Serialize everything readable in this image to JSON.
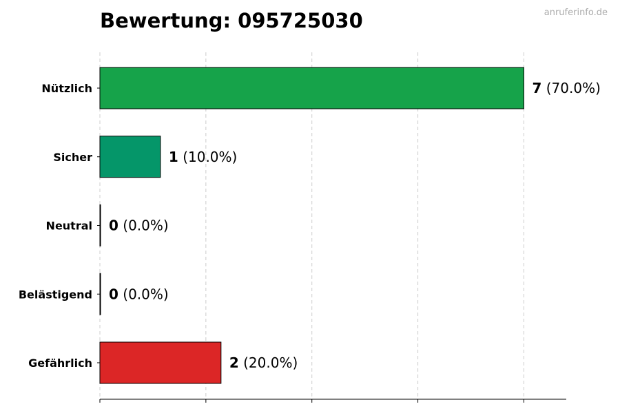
{
  "chart_data": {
    "type": "bar",
    "orientation": "horizontal",
    "title": "Bewertung: 095725030",
    "watermark": "anruferinfo.de",
    "categories": [
      "Nützlich",
      "Sicher",
      "Neutral",
      "Belästigend",
      "Gefährlich"
    ],
    "values": [
      7,
      1,
      0,
      0,
      2
    ],
    "percent_labels": [
      "(70.0%)",
      "(10.0%)",
      "(0.0%)",
      "(0.0%)",
      "(20.0%)"
    ],
    "colors": [
      "#16a34a",
      "#059669",
      "#6b7280",
      "#f97316",
      "#dc2626"
    ],
    "xlim": [
      0,
      7.7
    ],
    "xticks": [
      0,
      1.75,
      3.5,
      5.25,
      7
    ],
    "grid": true
  }
}
